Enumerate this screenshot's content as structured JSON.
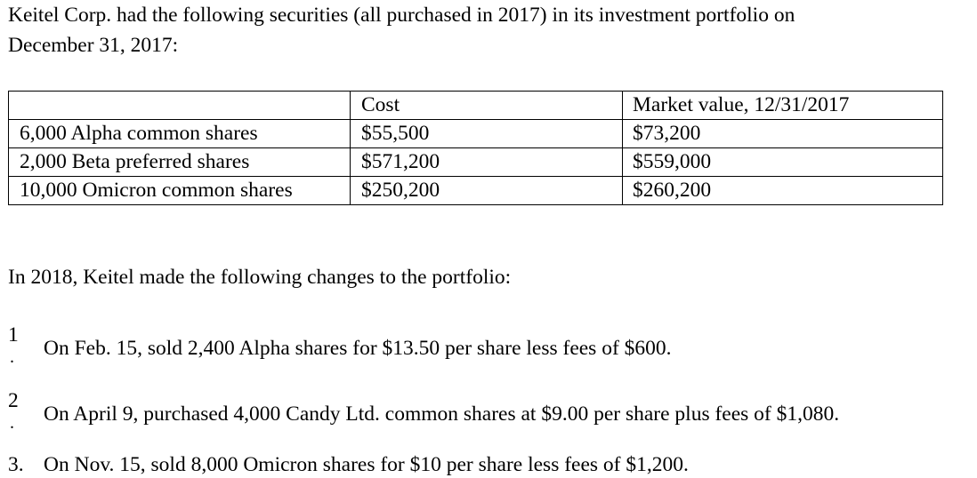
{
  "intro": {
    "line1": "Keitel Corp. had the following securities (all purchased in 2017) in its investment portfolio on",
    "line2": "December 31, 2017:"
  },
  "portfolio_table": {
    "headers": [
      "",
      "Cost",
      "Market value, 12/31/2017"
    ],
    "rows": [
      [
        "6,000 Alpha common shares",
        "$55,500",
        "$73,200"
      ],
      [
        "2,000 Beta preferred shares",
        "$571,200",
        "$559,000"
      ],
      [
        "10,000 Omicron common shares",
        "$250,200",
        "$260,200"
      ]
    ]
  },
  "changes_intro": "In 2018, Keitel made the following changes to the portfolio:",
  "changes": [
    {
      "number": "1",
      "suffix": ".",
      "text": "On Feb. 15, sold 2,400 Alpha shares for $13.50 per share less fees of $600."
    },
    {
      "number": "2",
      "suffix": ".",
      "text": "On April 9, purchased 4,000 Candy Ltd. common shares at $9.00 per share plus fees of $1,080."
    },
    {
      "number": "3.",
      "suffix": "",
      "text": "On Nov. 15, sold 8,000 Omicron shares for $10 per share less fees of $1,200."
    }
  ]
}
